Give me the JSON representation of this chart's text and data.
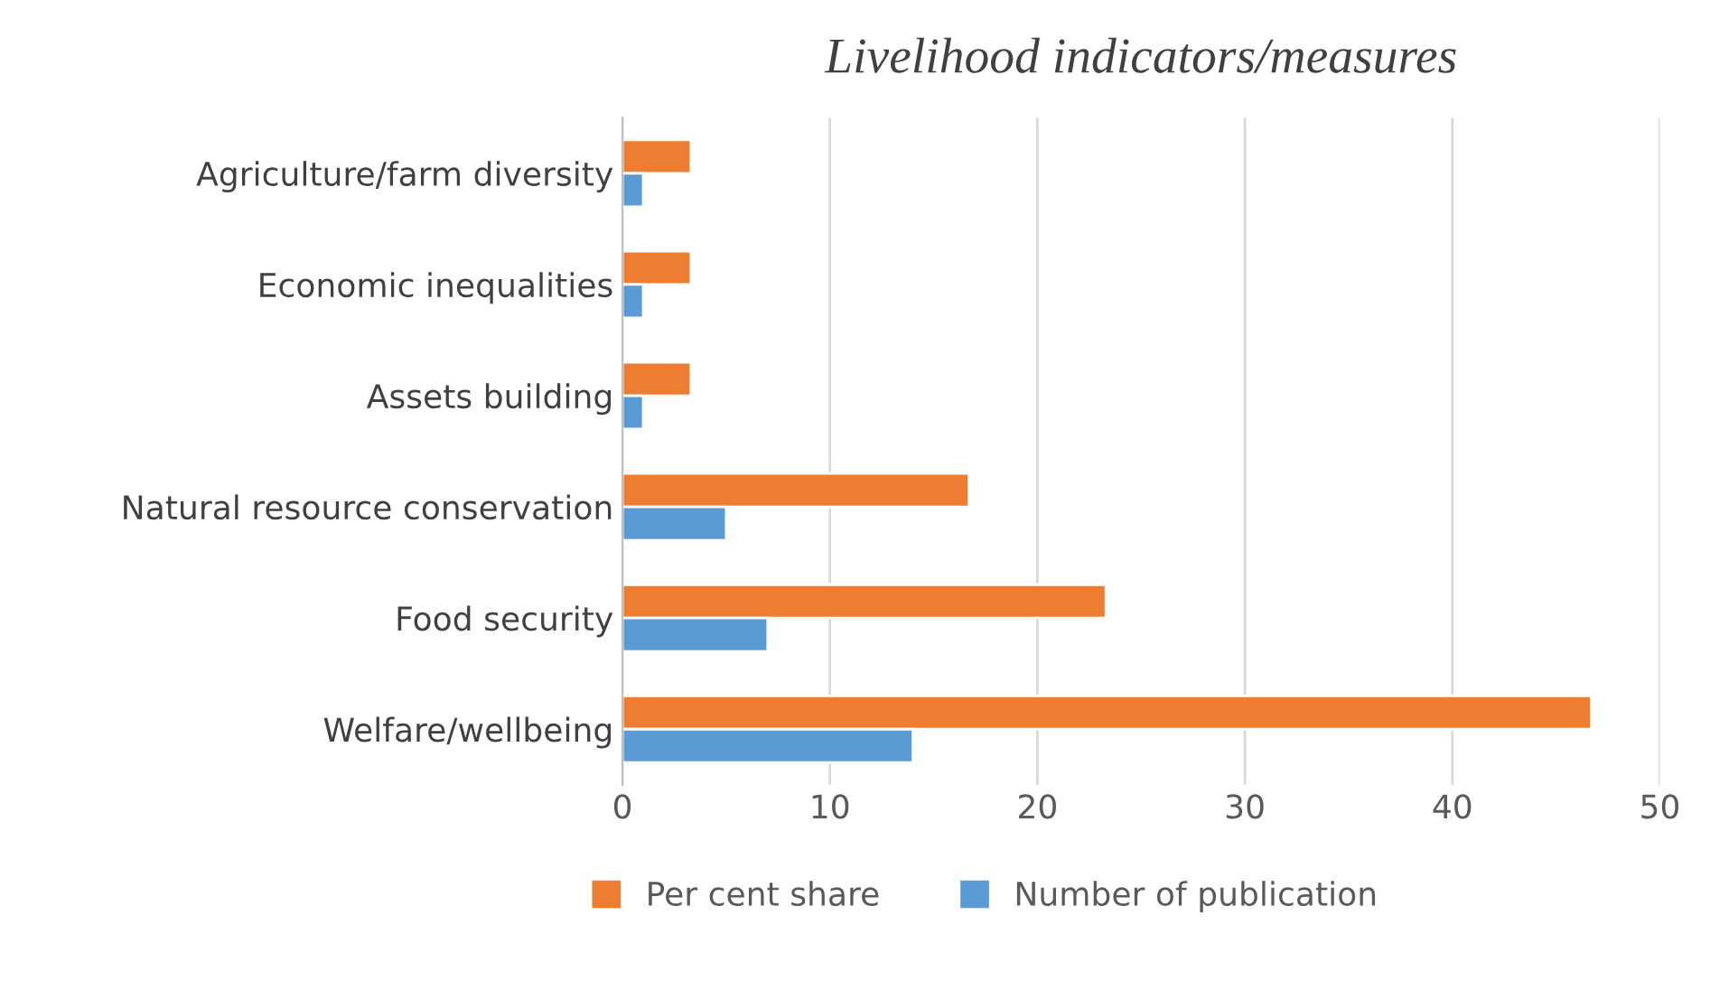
{
  "chart_data": {
    "type": "bar",
    "orientation": "horizontal",
    "title": "Livelihood indicators/measures",
    "categories": [
      "Agriculture/farm diversity",
      "Economic inequalities",
      "Assets building",
      "Natural resource conservation",
      "Food security",
      "Welfare/wellbeing"
    ],
    "series": [
      {
        "name": "Per cent share",
        "color": "#ed7d31",
        "values": [
          3.3,
          3.3,
          3.3,
          16.7,
          23.3,
          46.7
        ]
      },
      {
        "name": "Number of publication",
        "color": "#5b9bd5",
        "values": [
          1,
          1,
          1,
          5,
          7,
          14
        ]
      }
    ],
    "xlim": [
      0,
      50
    ],
    "xticks": [
      0,
      10,
      20,
      30,
      40,
      50
    ],
    "grid": "x",
    "legend": "bottom"
  }
}
